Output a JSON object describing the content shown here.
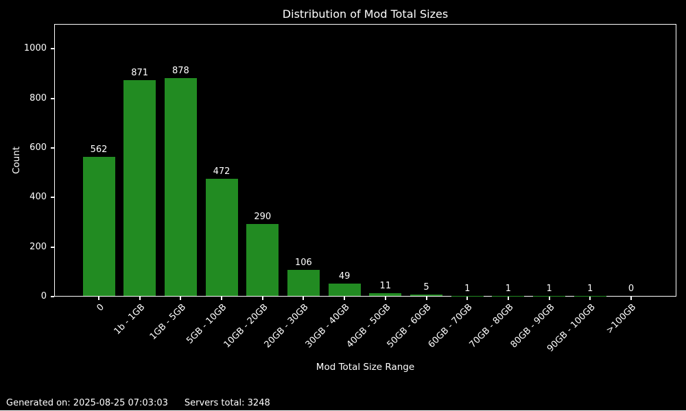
{
  "window": {
    "background_color": "#000000",
    "text_color": "#ffffff",
    "spine_color": "#ffffff"
  },
  "chart_data": {
    "type": "bar",
    "title": "Distribution of Mod Total Sizes",
    "xlabel": "Mod Total Size Range",
    "ylabel": "Count",
    "categories": [
      "0",
      "1b - 1GB",
      "1GB - 5GB",
      "5GB - 10GB",
      "10GB - 20GB",
      "20GB - 30GB",
      "30GB - 40GB",
      "40GB - 50GB",
      "50GB - 60GB",
      "60GB - 70GB",
      "70GB - 80GB",
      "80GB - 90GB",
      "90GB - 100GB",
      ">100GB"
    ],
    "values": [
      562,
      871,
      878,
      472,
      290,
      106,
      49,
      11,
      5,
      1,
      1,
      1,
      1,
      0
    ],
    "bar_labels": [
      "562",
      "871",
      "878",
      "472",
      "290",
      "106",
      "49",
      "11",
      "5",
      "1",
      "1",
      "1",
      "1",
      "0"
    ],
    "bar_color": "#228b22",
    "ylim": [
      0,
      1100
    ],
    "yticks": [
      0,
      200,
      400,
      600,
      800,
      1000
    ],
    "grid": "off",
    "legend": "none",
    "x_tick_label_rotation_deg": 45,
    "background": "#000000"
  },
  "footer": {
    "generated": "Generated on: 2025-08-25 07:03:03",
    "servers_total": "Servers total: 3248"
  }
}
